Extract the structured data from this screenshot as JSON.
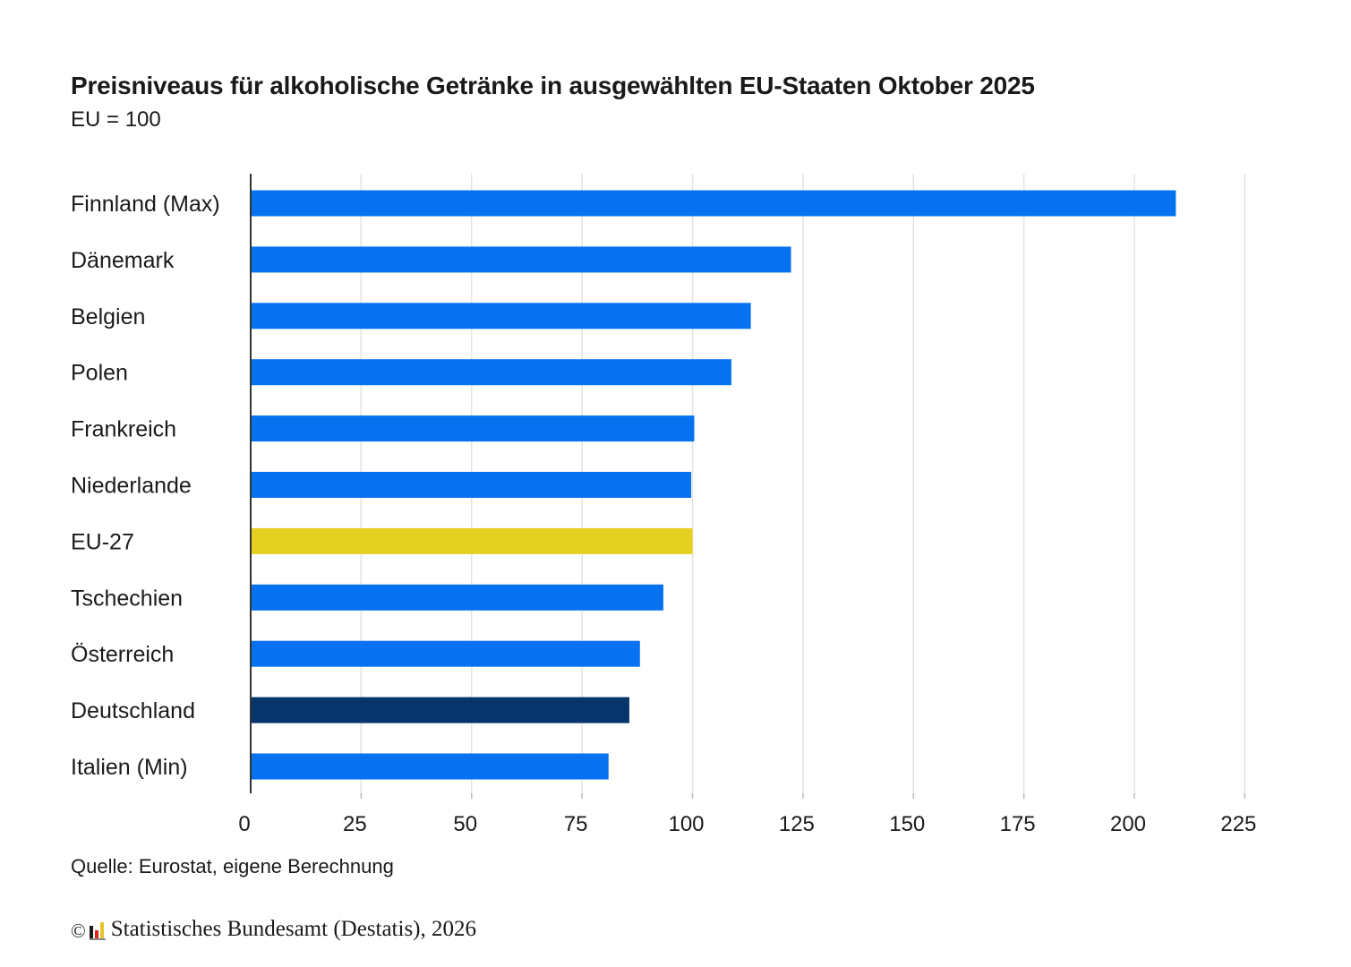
{
  "title": "Preisniveaus für alkoholische Getränke in ausgewählten EU-Staaten Oktober 2025",
  "subtitle": "EU = 100",
  "source": "Quelle: Eurostat, eigene Berechnung",
  "footer": {
    "copyright_symbol": "©",
    "text": "Statistisches Bundesamt (Destatis), 2026",
    "logo_icon": "destatis-logo-icon"
  },
  "colors": {
    "default_bar": "#0672f0",
    "eu_bar": "#e3d020",
    "germany_bar": "#05356b",
    "grid": "#e3e3e3",
    "axis": "#333333"
  },
  "chart_data": {
    "type": "bar",
    "orientation": "horizontal",
    "title": "Preisniveaus für alkoholische Getränke in ausgewählten EU-Staaten Oktober 2025",
    "subtitle": "EU = 100",
    "categories": [
      "Finnland (Max)",
      "Dänemark",
      "Belgien",
      "Polen",
      "Frankreich",
      "Niederlande",
      "EU-27",
      "Tschechien",
      "Österreich",
      "Deutschland",
      "Italien (Min)"
    ],
    "values": [
      209.4,
      122.3,
      113.2,
      108.8,
      100.4,
      99.7,
      100,
      93.4,
      88.1,
      85.7,
      81.0
    ],
    "bar_colors": [
      "#0672f0",
      "#0672f0",
      "#0672f0",
      "#0672f0",
      "#0672f0",
      "#0672f0",
      "#e3d020",
      "#0672f0",
      "#0672f0",
      "#05356b",
      "#0672f0"
    ],
    "xticks": [
      0,
      25,
      50,
      75,
      100,
      125,
      150,
      175,
      200,
      225
    ],
    "xlim": [
      0,
      225
    ],
    "grid": true,
    "legend": "none"
  }
}
